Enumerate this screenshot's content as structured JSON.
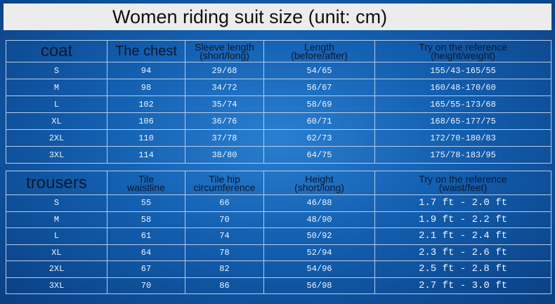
{
  "title": "Women riding suit size (unit: cm)",
  "coat": {
    "header": [
      [
        "coat"
      ],
      [
        "The chest"
      ],
      [
        "Sleeve length",
        "(short/long)"
      ],
      [
        "Length",
        "(before/after)"
      ],
      [
        "Try on the reference",
        "(height/weight)"
      ]
    ],
    "rows": [
      [
        "S",
        "94",
        "29/68",
        "54/65",
        "155/43-165/55"
      ],
      [
        "M",
        "98",
        "34/72",
        "56/67",
        "160/48-170/60"
      ],
      [
        "L",
        "102",
        "35/74",
        "58/69",
        "165/55-173/68"
      ],
      [
        "XL",
        "106",
        "36/76",
        "60/71",
        "168/65-177/75"
      ],
      [
        "2XL",
        "110",
        "37/78",
        "62/73",
        "172/70-180/83"
      ],
      [
        "3XL",
        "114",
        "38/80",
        "64/75",
        "175/78-183/95"
      ]
    ]
  },
  "trousers": {
    "header": [
      [
        "trousers"
      ],
      [
        "Tile",
        "waistline"
      ],
      [
        "Tile hip",
        "circumference"
      ],
      [
        "Height",
        "(short/long)"
      ],
      [
        "Try on the reference",
        "(waist/feet)"
      ]
    ],
    "rows": [
      [
        "S",
        "55",
        "66",
        "46/88",
        "1.7 ft - 2.0 ft"
      ],
      [
        "M",
        "58",
        "70",
        "48/90",
        "1.9 ft - 2.2 ft"
      ],
      [
        "L",
        "61",
        "74",
        "50/92",
        "2.1 ft - 2.4 ft"
      ],
      [
        "XL",
        "64",
        "78",
        "52/94",
        "2.3 ft - 2.6 ft"
      ],
      [
        "2XL",
        "67",
        "82",
        "54/96",
        "2.5 ft - 2.8 ft"
      ],
      [
        "3XL",
        "70",
        "86",
        "56/98",
        "2.7 ft - 3.0 ft"
      ]
    ]
  }
}
